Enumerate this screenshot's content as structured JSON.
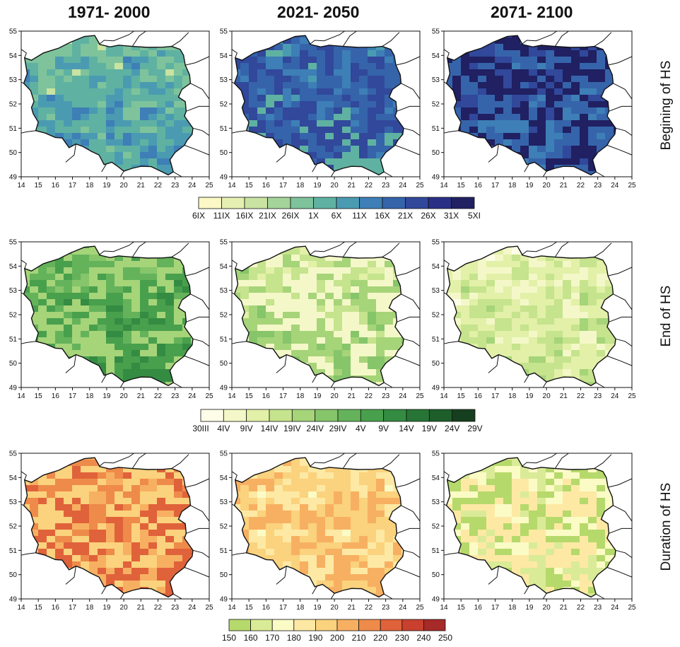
{
  "columns": [
    "1971- 2000",
    "2021- 2050",
    "2071- 2100"
  ],
  "rows": [
    {
      "label": "Begining of HS",
      "colorbar": {
        "labels": [
          "6IX",
          "11IX",
          "16IX",
          "21IX",
          "26IX",
          "1X",
          "6X",
          "11X",
          "16X",
          "21X",
          "26X",
          "31X",
          "5XI"
        ],
        "colors": [
          "#fbf7c6",
          "#e6efb2",
          "#c9e3a2",
          "#a4d49a",
          "#7ec39b",
          "#5fb2a2",
          "#4a9bb2",
          "#3d7fb6",
          "#3664ab",
          "#31489b",
          "#2a2f86",
          "#202062"
        ]
      },
      "panels": [
        {
          "palette": [
            "#c9e3a2",
            "#7ec39b",
            "#5fb2a2",
            "#4a9bb2",
            "#3d7fb6"
          ]
        },
        {
          "palette": [
            "#4a9bb2",
            "#3d7fb6",
            "#3664ab",
            "#31489b",
            "#5fb2a2"
          ]
        },
        {
          "palette": [
            "#2a2f86",
            "#31489b",
            "#202062",
            "#3664ab",
            "#3d7fb6"
          ]
        }
      ]
    },
    {
      "label": "End of HS",
      "colorbar": {
        "labels": [
          "30III",
          "4IV",
          "9IV",
          "14IV",
          "19IV",
          "24IV",
          "29IV",
          "4V",
          "9V",
          "14V",
          "19V",
          "24V",
          "29V"
        ],
        "colors": [
          "#fdfde8",
          "#f4f8c8",
          "#e2f0a8",
          "#c6e38d",
          "#a6d479",
          "#86c56a",
          "#64b35b",
          "#48a04d",
          "#348b42",
          "#277536",
          "#1d5e2b",
          "#163f1f"
        ]
      },
      "panels": [
        {
          "palette": [
            "#86c56a",
            "#64b35b",
            "#a6d479",
            "#48a04d",
            "#348b42"
          ]
        },
        {
          "palette": [
            "#e2f0a8",
            "#c6e38d",
            "#f4f8c8",
            "#a6d479",
            "#86c56a"
          ]
        },
        {
          "palette": [
            "#fdfde8",
            "#f4f8c8",
            "#e2f0a8",
            "#c6e38d",
            "#a6d479"
          ]
        }
      ]
    },
    {
      "label": "Duration of HS",
      "colorbar": {
        "labels": [
          "150",
          "160",
          "170",
          "180",
          "190",
          "200",
          "210",
          "220",
          "230",
          "240",
          "250"
        ],
        "colors": [
          "#b6d96b",
          "#daeb97",
          "#fbfbc6",
          "#fde9a4",
          "#fbd27d",
          "#f7b061",
          "#ee8b4a",
          "#e0623a",
          "#c9402f",
          "#a62a28"
        ]
      },
      "panels": [
        {
          "palette": [
            "#f7b061",
            "#ee8b4a",
            "#fbd27d",
            "#e0623a",
            "#f7b061"
          ]
        },
        {
          "palette": [
            "#fbfbc6",
            "#fde9a4",
            "#fbd27d",
            "#f7b061",
            "#fde9a4"
          ]
        },
        {
          "palette": [
            "#daeb97",
            "#fbfbc6",
            "#b6d96b",
            "#fde9a4",
            "#daeb97"
          ]
        }
      ]
    }
  ],
  "map": {
    "x_ticks": [
      "14",
      "15",
      "16",
      "17",
      "18",
      "19",
      "20",
      "21",
      "22",
      "23",
      "24",
      "25"
    ],
    "y_ticks": [
      "55",
      "54",
      "53",
      "52",
      "51",
      "50",
      "49"
    ]
  }
}
